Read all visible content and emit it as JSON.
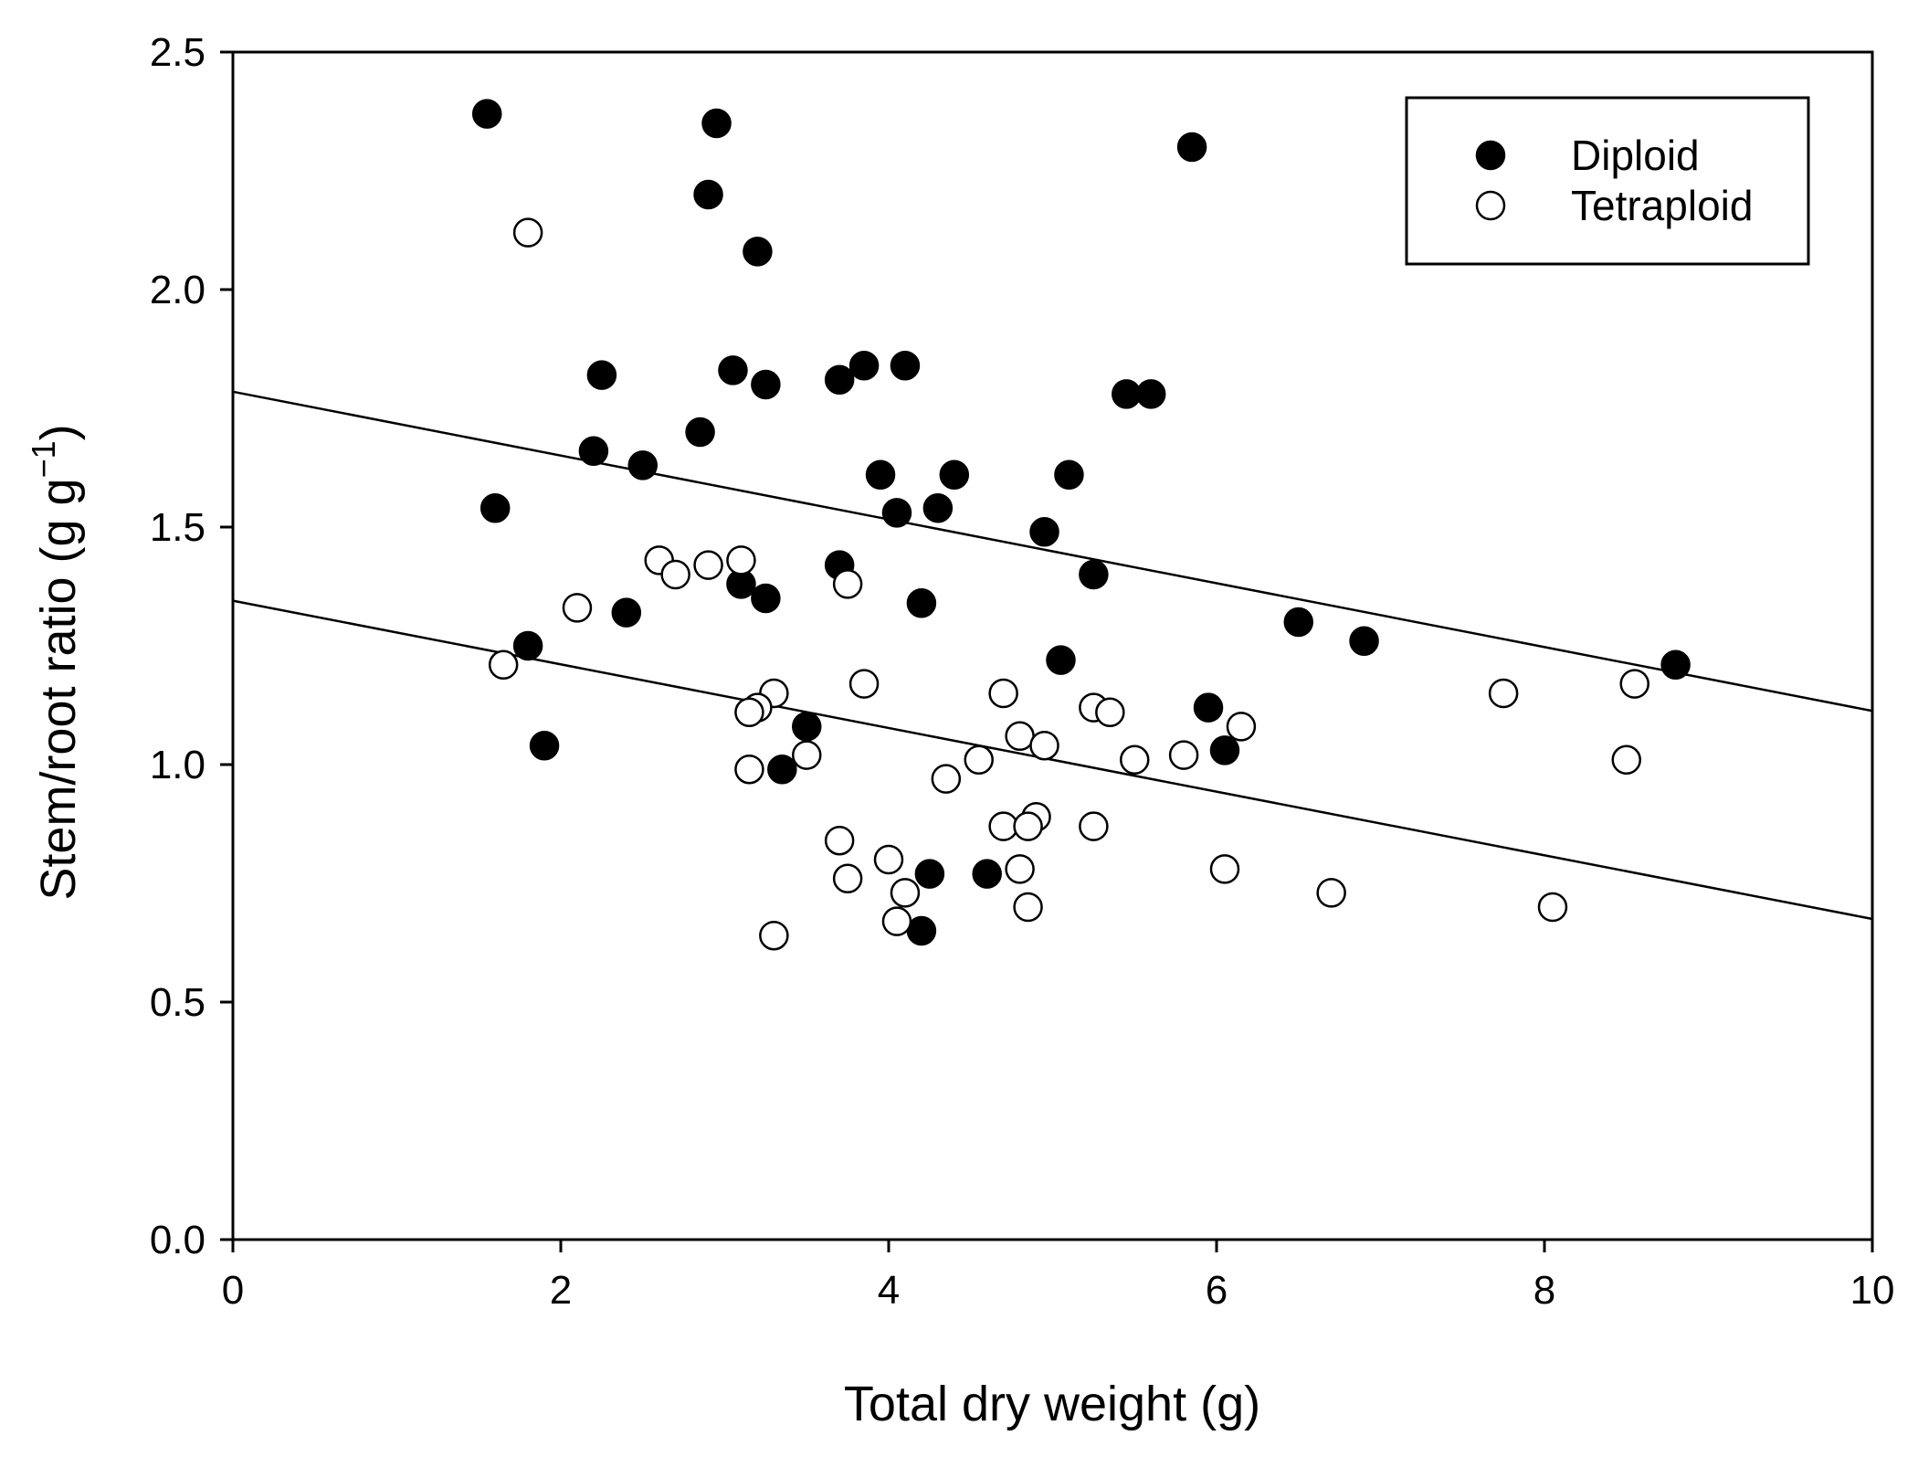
{
  "chart_data": {
    "type": "scatter",
    "title": "",
    "xlabel": "Total dry weight (g)",
    "ylabel": "Stem/root ratio (g g",
    "ylabel_unit_exponent": "−1",
    "ylabel_suffix": ")",
    "xlim": [
      0,
      10
    ],
    "ylim": [
      0,
      2.5
    ],
    "x_ticks": [
      0,
      2,
      4,
      6,
      8,
      10
    ],
    "x_tick_labels": [
      "0",
      "2",
      "4",
      "6",
      "8",
      "10"
    ],
    "y_ticks": [
      0,
      0.5,
      1,
      1.5,
      2,
      2.5
    ],
    "y_tick_labels": [
      "0.0",
      "0.5",
      "1.0",
      "1.5",
      "2.0",
      "2.5"
    ],
    "grid": false,
    "legend_position": "top-right",
    "series": [
      {
        "name": "Diploid",
        "marker": "filled-circle",
        "color": "#000000",
        "points": [
          [
            1.55,
            2.37
          ],
          [
            2.95,
            2.35
          ],
          [
            2.9,
            2.2
          ],
          [
            5.85,
            2.3
          ],
          [
            3.2,
            2.08
          ],
          [
            2.25,
            1.82
          ],
          [
            3.05,
            1.83
          ],
          [
            3.25,
            1.8
          ],
          [
            3.7,
            1.81
          ],
          [
            3.85,
            1.84
          ],
          [
            4.1,
            1.84
          ],
          [
            5.45,
            1.78
          ],
          [
            5.6,
            1.78
          ],
          [
            2.85,
            1.7
          ],
          [
            2.2,
            1.66
          ],
          [
            2.5,
            1.63
          ],
          [
            3.95,
            1.61
          ],
          [
            4.4,
            1.61
          ],
          [
            5.1,
            1.61
          ],
          [
            1.6,
            1.54
          ],
          [
            4.05,
            1.53
          ],
          [
            4.3,
            1.54
          ],
          [
            4.95,
            1.49
          ],
          [
            3.7,
            1.42
          ],
          [
            3.1,
            1.38
          ],
          [
            5.25,
            1.4
          ],
          [
            3.25,
            1.35
          ],
          [
            4.2,
            1.34
          ],
          [
            2.4,
            1.32
          ],
          [
            6.5,
            1.3
          ],
          [
            6.9,
            1.26
          ],
          [
            1.8,
            1.25
          ],
          [
            5.05,
            1.22
          ],
          [
            8.8,
            1.21
          ],
          [
            5.95,
            1.12
          ],
          [
            3.5,
            1.08
          ],
          [
            1.9,
            1.04
          ],
          [
            6.05,
            1.03
          ],
          [
            3.35,
            0.99
          ],
          [
            4.25,
            0.77
          ],
          [
            4.6,
            0.77
          ],
          [
            4.2,
            0.65
          ]
        ],
        "fit_line": {
          "intercept": 1.785,
          "slope": -0.0672
        }
      },
      {
        "name": "Tetraploid",
        "marker": "open-circle",
        "color": "#000000",
        "points": [
          [
            1.8,
            2.12
          ],
          [
            2.6,
            1.43
          ],
          [
            2.9,
            1.42
          ],
          [
            3.1,
            1.43
          ],
          [
            2.7,
            1.4
          ],
          [
            3.75,
            1.38
          ],
          [
            2.1,
            1.33
          ],
          [
            1.65,
            1.21
          ],
          [
            3.85,
            1.17
          ],
          [
            3.3,
            1.15
          ],
          [
            4.7,
            1.15
          ],
          [
            7.75,
            1.15
          ],
          [
            8.55,
            1.17
          ],
          [
            3.2,
            1.12
          ],
          [
            3.15,
            1.11
          ],
          [
            5.25,
            1.12
          ],
          [
            5.35,
            1.11
          ],
          [
            6.15,
            1.08
          ],
          [
            4.8,
            1.06
          ],
          [
            4.95,
            1.04
          ],
          [
            3.5,
            1.02
          ],
          [
            4.55,
            1.01
          ],
          [
            5.5,
            1.01
          ],
          [
            5.8,
            1.02
          ],
          [
            8.5,
            1.01
          ],
          [
            3.15,
            0.99
          ],
          [
            4.35,
            0.97
          ],
          [
            4.9,
            0.89
          ],
          [
            4.7,
            0.87
          ],
          [
            4.85,
            0.87
          ],
          [
            5.25,
            0.87
          ],
          [
            3.7,
            0.84
          ],
          [
            4.0,
            0.8
          ],
          [
            4.8,
            0.78
          ],
          [
            6.05,
            0.78
          ],
          [
            3.75,
            0.76
          ],
          [
            4.1,
            0.73
          ],
          [
            6.7,
            0.73
          ],
          [
            4.85,
            0.7
          ],
          [
            8.05,
            0.7
          ],
          [
            4.05,
            0.67
          ],
          [
            3.3,
            0.64
          ]
        ],
        "fit_line": {
          "intercept": 1.345,
          "slope": -0.067
        }
      }
    ]
  }
}
